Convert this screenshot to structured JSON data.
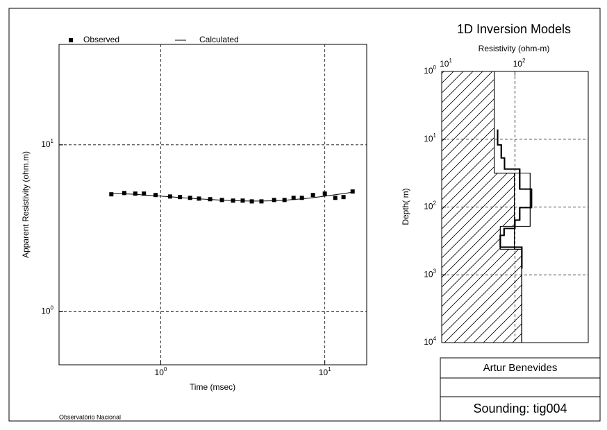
{
  "chart_data": [
    {
      "type": "scatter",
      "xlabel": "Time (msec)",
      "ylabel": "Apparent Resistivity (ohm.m)",
      "log_x": true,
      "log_y": true,
      "grid": true,
      "xlim": [
        0.24,
        18
      ],
      "ylim": [
        0.48,
        40
      ],
      "xticks": [
        {
          "value": 1,
          "label": "10",
          "sup": "0"
        },
        {
          "value": 10,
          "label": "10",
          "sup": "1"
        }
      ],
      "yticks": [
        {
          "value": 1,
          "label": "10",
          "sup": "0"
        },
        {
          "value": 10,
          "label": "10",
          "sup": "1"
        }
      ],
      "x": [
        0.5,
        0.6,
        0.7,
        0.79,
        0.93,
        1.14,
        1.31,
        1.51,
        1.71,
        2.0,
        2.36,
        2.76,
        3.16,
        3.59,
        4.11,
        4.91,
        5.68,
        6.45,
        7.25,
        8.47,
        10,
        11.58,
        13.0,
        14.77
      ],
      "series": [
        {
          "name": "Observed",
          "style": "marker",
          "color": "#000000",
          "values": [
            5.05,
            5.14,
            5.1,
            5.1,
            5.0,
            4.9,
            4.86,
            4.81,
            4.76,
            4.72,
            4.67,
            4.63,
            4.63,
            4.58,
            4.58,
            4.67,
            4.67,
            4.81,
            4.81,
            5.0,
            5.1,
            4.81,
            4.86,
            5.25
          ]
        },
        {
          "name": "Calculated",
          "style": "line",
          "color": "#000000",
          "values": [
            5.1,
            5.08,
            5.05,
            5.0,
            4.95,
            4.88,
            4.83,
            4.78,
            4.74,
            4.7,
            4.66,
            4.63,
            4.61,
            4.6,
            4.6,
            4.62,
            4.65,
            4.7,
            4.74,
            4.82,
            4.92,
            5.02,
            5.1,
            5.2
          ]
        }
      ]
    },
    {
      "type": "model",
      "title": "1D Inversion Models",
      "xlabel": "Resistivity (ohm-m)",
      "ylabel": "Depth( m)",
      "log_x": true,
      "log_y": true,
      "grid": true,
      "xlim": [
        10,
        1000
      ],
      "ylim": [
        1,
        10000
      ],
      "xticks": [
        {
          "value": 10,
          "label": "10",
          "sup": "1"
        },
        {
          "value": 100,
          "label": "10",
          "sup": "2"
        }
      ],
      "yticks": [
        {
          "value": 1,
          "label": "10",
          "sup": "0"
        },
        {
          "value": 10,
          "label": "10",
          "sup": "1"
        },
        {
          "value": 100,
          "label": "10",
          "sup": "2"
        },
        {
          "value": 1000,
          "label": "10",
          "sup": "3"
        },
        {
          "value": 10000,
          "label": "10",
          "sup": "4"
        }
      ],
      "min_model": {
        "resistivity": [
          52,
          98,
          63,
          124
        ],
        "depths": [
          1,
          31.6,
          193,
          419,
          10000
        ]
      },
      "max_model": {
        "resistivity": [
          52,
          161,
          98,
          124
        ],
        "depths": [
          1,
          31.6,
          193,
          419,
          10000
        ]
      },
      "best_model": {
        "resistivity": [
          58,
          65,
          72,
          116,
          168,
          116,
          100,
          71,
          63,
          124
        ],
        "depths": [
          7.2,
          12.1,
          18.9,
          27.5,
          54.3,
          102,
          156,
          207,
          262,
          391,
          809
        ]
      }
    }
  ],
  "title_block": {
    "author": "Artur Benevides",
    "sounding": "Sounding: tig004"
  },
  "footer": "Observatório Nacional"
}
